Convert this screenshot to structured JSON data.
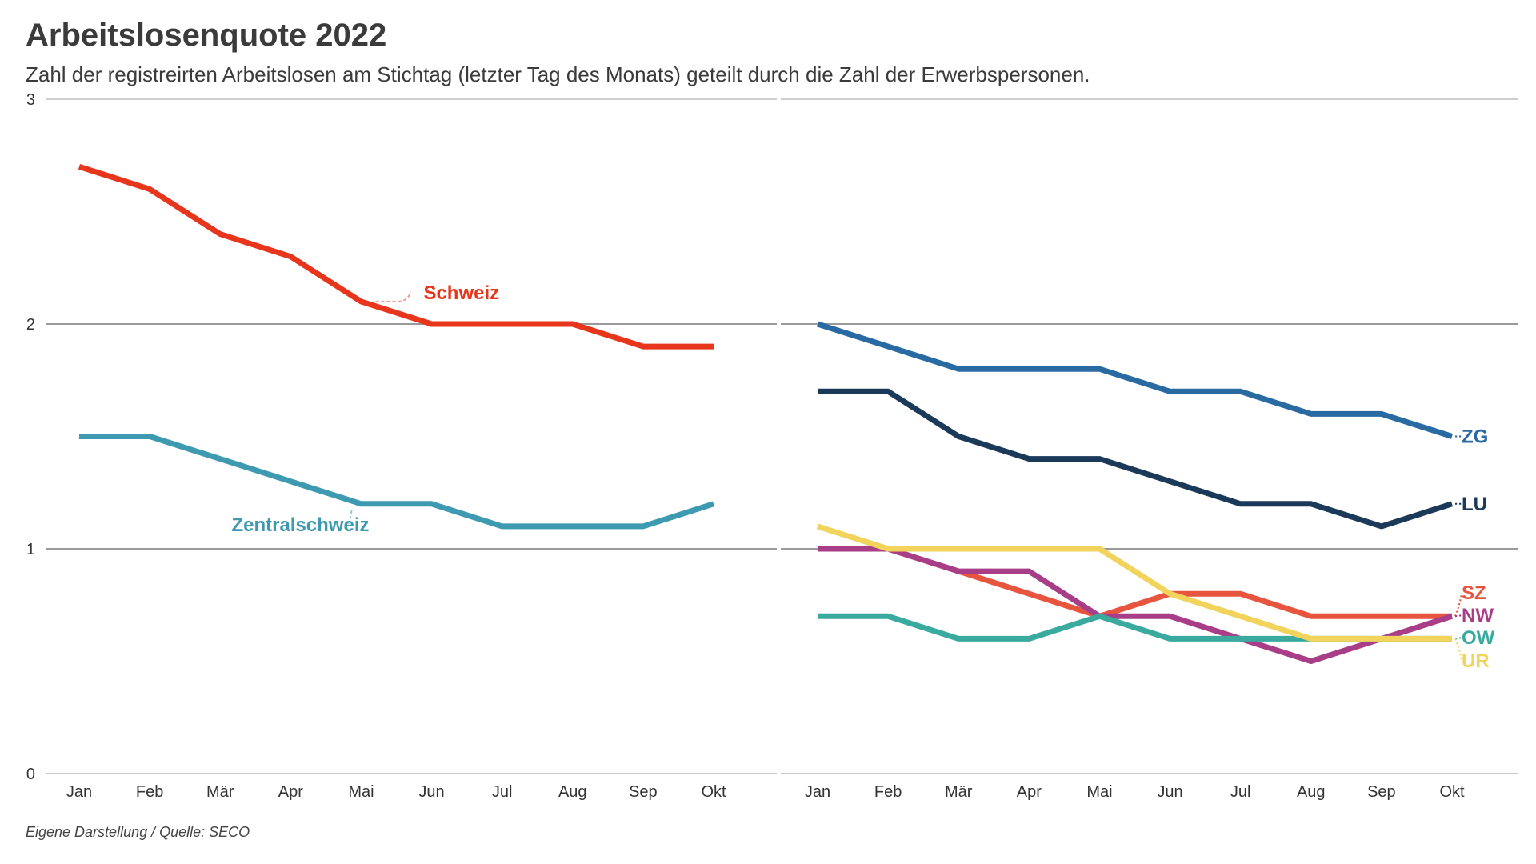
{
  "title": "Arbeitslosenquote 2022",
  "subtitle": "Zahl der registreirten Arbeitslosen am Stichtag (letzter Tag des Monats) geteilt durch die Zahl der Erwerbspersonen.",
  "source": "Eigene Darstellung / Quelle: SECO",
  "chart_data": [
    {
      "type": "line",
      "panel": "left",
      "categories": [
        "Jan",
        "Feb",
        "Mär",
        "Apr",
        "Mai",
        "Jun",
        "Jul",
        "Aug",
        "Sep",
        "Okt"
      ],
      "ylim": [
        0,
        3
      ],
      "yticks": [
        0,
        1,
        2,
        3
      ],
      "grid": true,
      "series": [
        {
          "name": "Schweiz",
          "color": "#e8361c",
          "values": [
            2.7,
            2.6,
            2.4,
            2.3,
            2.1,
            2.0,
            2.0,
            2.0,
            1.9,
            1.9
          ],
          "label_style": "annotation-above"
        },
        {
          "name": "Zentralschweiz",
          "color": "#3e9ab0",
          "values": [
            1.5,
            1.5,
            1.4,
            1.3,
            1.2,
            1.2,
            1.1,
            1.1,
            1.1,
            1.2
          ],
          "label_style": "annotation-below"
        }
      ]
    },
    {
      "type": "line",
      "panel": "right",
      "categories": [
        "Jan",
        "Feb",
        "Mär",
        "Apr",
        "Mai",
        "Jun",
        "Jul",
        "Aug",
        "Sep",
        "Okt"
      ],
      "ylim": [
        0,
        3
      ],
      "grid": true,
      "series": [
        {
          "name": "ZG",
          "color": "#2a6aa3",
          "values": [
            2.0,
            1.9,
            1.8,
            1.8,
            1.8,
            1.7,
            1.7,
            1.6,
            1.6,
            1.5
          ]
        },
        {
          "name": "LU",
          "color": "#1b3a5a",
          "values": [
            1.7,
            1.7,
            1.5,
            1.4,
            1.4,
            1.3,
            1.2,
            1.2,
            1.1,
            1.2
          ]
        },
        {
          "name": "SZ",
          "color": "#e8553f",
          "values": [
            1.0,
            1.0,
            0.9,
            0.8,
            0.7,
            0.8,
            0.8,
            0.7,
            0.7,
            0.7
          ]
        },
        {
          "name": "NW",
          "color": "#a83e87",
          "values": [
            1.0,
            1.0,
            0.9,
            0.9,
            0.7,
            0.7,
            0.6,
            0.5,
            0.6,
            0.7
          ]
        },
        {
          "name": "OW",
          "color": "#3aaa9e",
          "values": [
            0.7,
            0.7,
            0.6,
            0.6,
            0.7,
            0.6,
            0.6,
            0.6,
            0.6,
            0.6
          ]
        },
        {
          "name": "UR",
          "color": "#f2d35b",
          "values": [
            1.1,
            1.0,
            1.0,
            1.0,
            1.0,
            0.8,
            0.7,
            0.6,
            0.6,
            0.6
          ]
        }
      ]
    }
  ]
}
